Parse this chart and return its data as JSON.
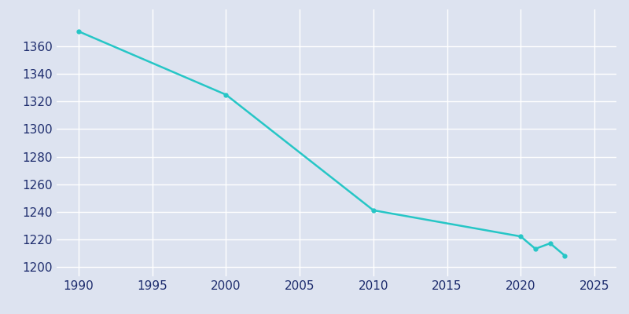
{
  "years": [
    1990,
    2000,
    2010,
    2020,
    2021,
    2022,
    2023
  ],
  "population": [
    1371,
    1325,
    1241,
    1222,
    1213,
    1217,
    1208
  ],
  "line_color": "#26C6C6",
  "bg_color": "#dde3f0",
  "grid_color": "#ffffff",
  "tick_color": "#1e2d6e",
  "xlim": [
    1988.5,
    2026.5
  ],
  "ylim": [
    1193,
    1387
  ],
  "yticks": [
    1200,
    1220,
    1240,
    1260,
    1280,
    1300,
    1320,
    1340,
    1360
  ],
  "xticks": [
    1990,
    1995,
    2000,
    2005,
    2010,
    2015,
    2020,
    2025
  ],
  "line_width": 1.8,
  "marker": "o",
  "marker_size": 3.5,
  "tick_labelsize": 11
}
